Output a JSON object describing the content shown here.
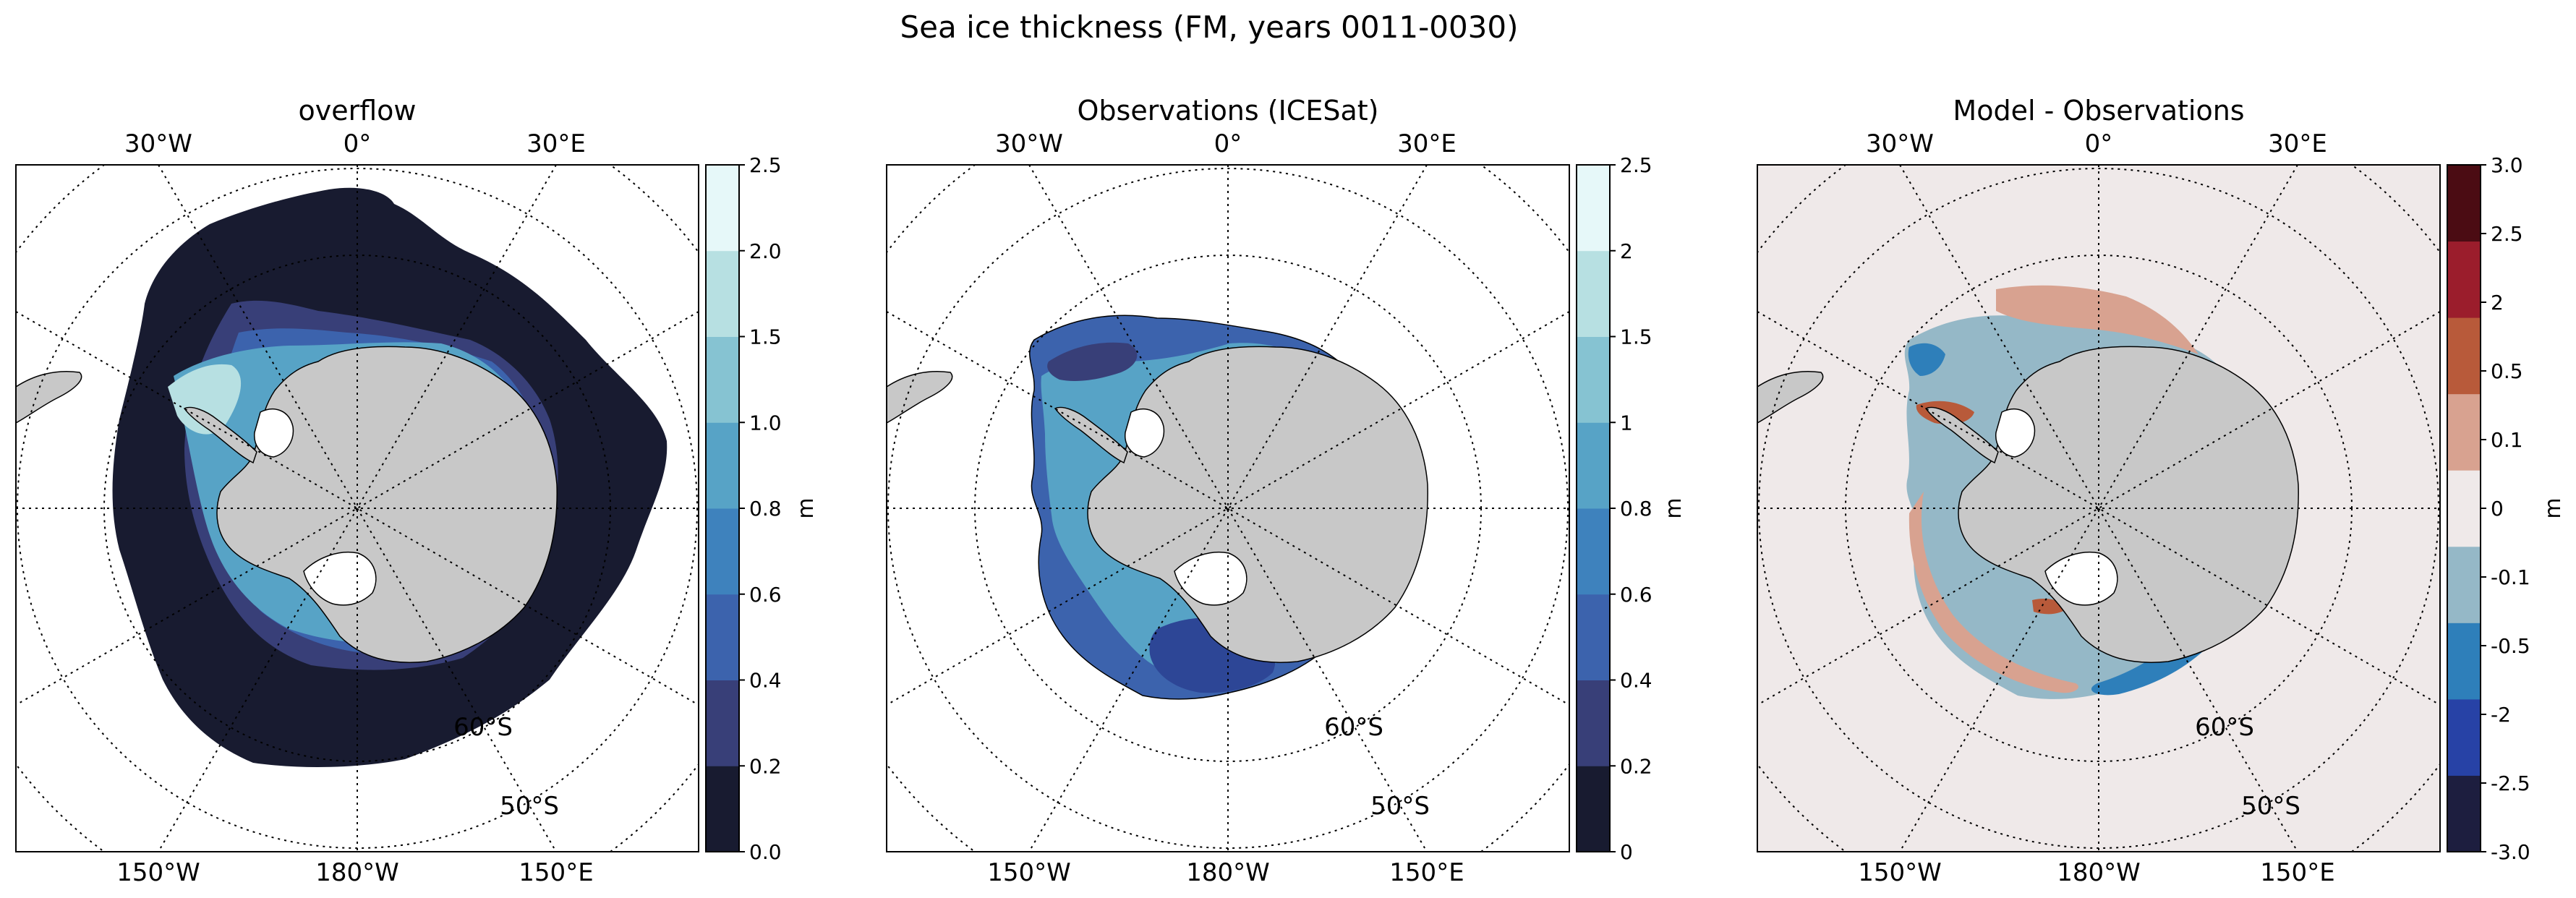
{
  "suptitle": "Sea ice thickness (FM, years 0011-0030)",
  "colors": {
    "land": "#c8c8c8",
    "ocean_bg_diff": "#efe9e9",
    "thickness_palette": [
      "#181b30",
      "#383f78",
      "#3c63ad",
      "#3e82bd",
      "#57a3c6",
      "#86c3d2",
      "#b7e0e2",
      "#e6f8f9"
    ],
    "diff_palette": [
      "#1d1e3f",
      "#2742a6",
      "#2e7fba",
      "#95b8c7",
      "#efe9e9",
      "#d8a290",
      "#b85a3a",
      "#9b1d2c",
      "#4b0c13"
    ]
  },
  "panels": [
    {
      "id": "overflow",
      "title": "overflow",
      "lon_labels_top": [
        "30°W",
        "0°",
        "30°E"
      ],
      "lon_labels_bottom": [
        "150°W",
        "180°W",
        "150°E"
      ],
      "lat_labels": [
        "60°S",
        "50°S"
      ],
      "colorbar": {
        "ticks": [
          "0.0",
          "0.2",
          "0.4",
          "0.6",
          "0.8",
          "1.0",
          "1.5",
          "2.0",
          "2.5"
        ],
        "unit": "m"
      }
    },
    {
      "id": "observations",
      "title": "Observations (ICESat)",
      "lon_labels_top": [
        "30°W",
        "0°",
        "30°E"
      ],
      "lon_labels_bottom": [
        "150°W",
        "180°W",
        "150°E"
      ],
      "lat_labels": [
        "60°S",
        "50°S"
      ],
      "colorbar": {
        "ticks": [
          "0",
          "0.2",
          "0.4",
          "0.6",
          "0.8",
          "1",
          "1.5",
          "2",
          "2.5"
        ],
        "unit": "m"
      }
    },
    {
      "id": "difference",
      "title": "Model - Observations",
      "lon_labels_top": [
        "30°W",
        "0°",
        "30°E"
      ],
      "lon_labels_bottom": [
        "150°W",
        "180°W",
        "150°E"
      ],
      "lat_labels": [
        "60°S",
        "50°S"
      ],
      "colorbar": {
        "ticks": [
          "-3.0",
          "-2.5",
          "-2",
          "-0.5",
          "-0.1",
          "0",
          "0.1",
          "0.5",
          "2",
          "2.5",
          "3.0"
        ],
        "unit": "m"
      }
    }
  ]
}
